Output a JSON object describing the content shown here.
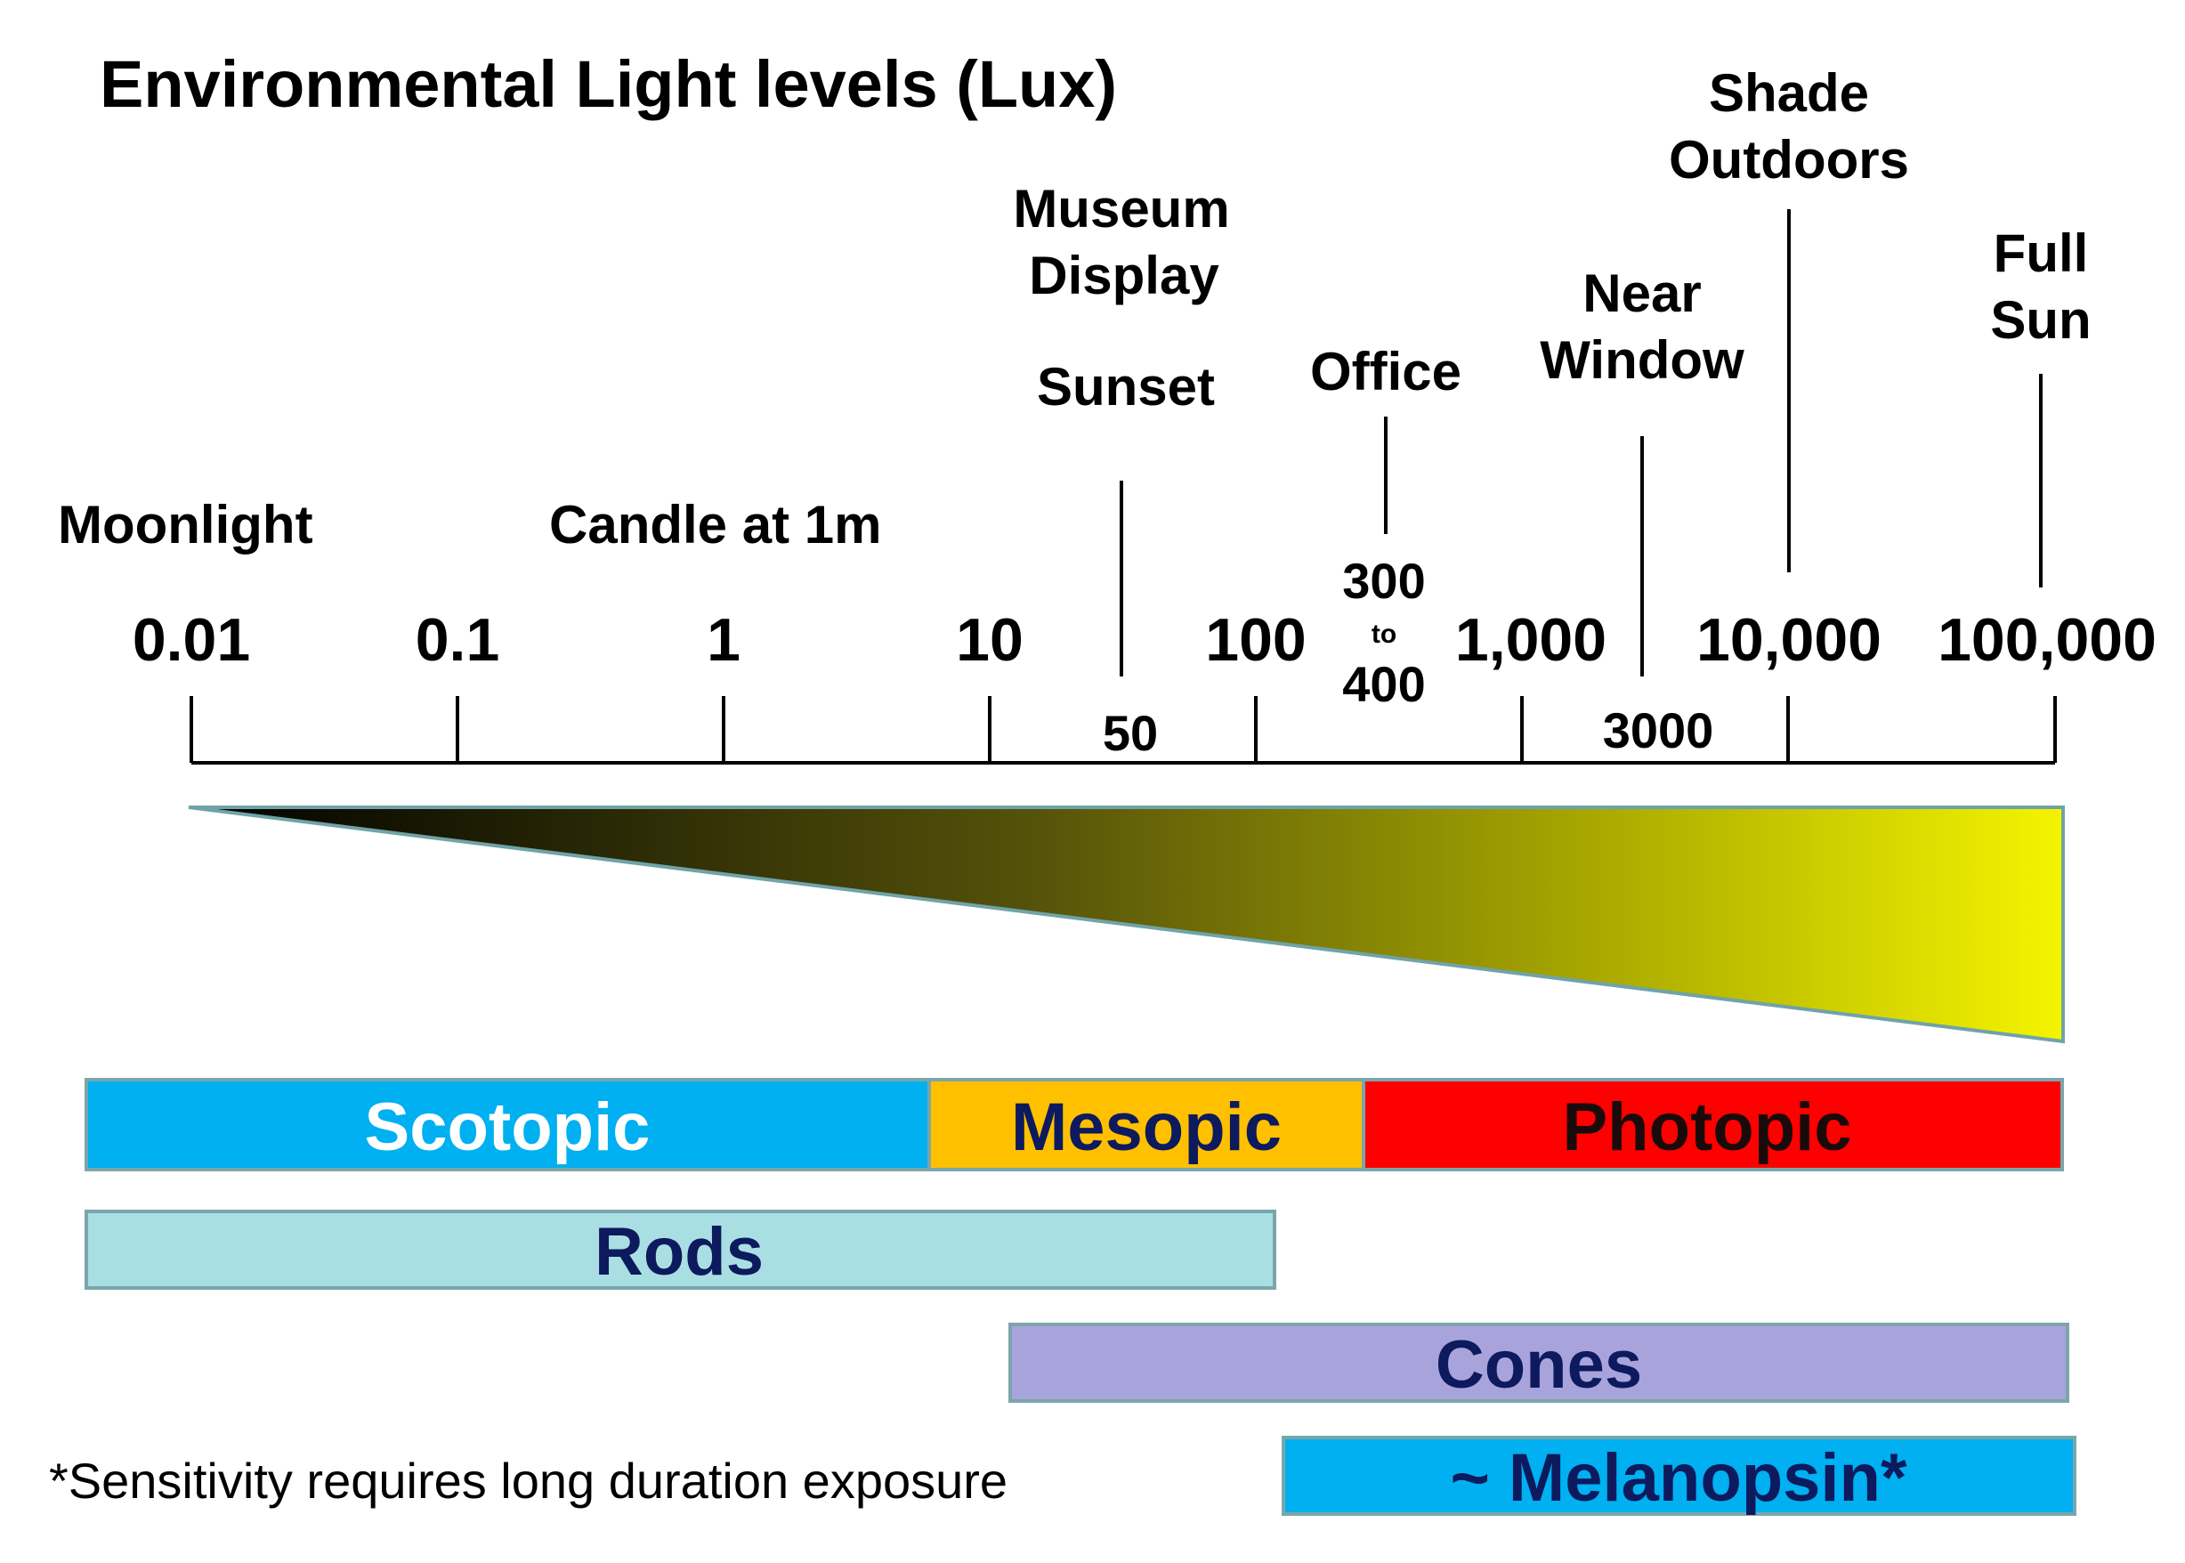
{
  "title": "Environmental Light levels (Lux)",
  "axis": {
    "ticks": [
      "0.01",
      "0.1",
      "1",
      "10",
      "100",
      "1,000",
      "10,000",
      "100,000"
    ]
  },
  "scenes": {
    "moonlight": "Moonlight",
    "candle": "Candle at 1m",
    "museum_line1": "Museum",
    "museum_line2": "Display",
    "sunset": "Sunset",
    "sunset_value": "50",
    "office": "Office",
    "office_value_high": "300",
    "office_value_to": "to",
    "office_value_low": "400",
    "near_window_line1": "Near",
    "near_window_line2": "Window",
    "near_window_value": "3000",
    "shade_line1": "Shade",
    "shade_line2": "Outdoors",
    "full_sun_line1": "Full",
    "full_sun_line2": "Sun"
  },
  "bands": {
    "scotopic": "Scotopic",
    "mesopic": "Mesopic",
    "photopic": "Photopic",
    "rods": "Rods",
    "cones": "Cones",
    "melanopsin": "~ Melanopsin*"
  },
  "footnote": "*Sensitivity requires long duration exposure",
  "colors": {
    "scotopic": "#00b0f0",
    "mesopic": "#ffc000",
    "photopic": "#ff0000",
    "rods": "#a9dfe2",
    "cones": "#a9a3dc",
    "melanopsin": "#00b0f0",
    "label_dark": "#0d1a5e",
    "gradient_start": "#000000",
    "gradient_end": "#f4f400"
  }
}
